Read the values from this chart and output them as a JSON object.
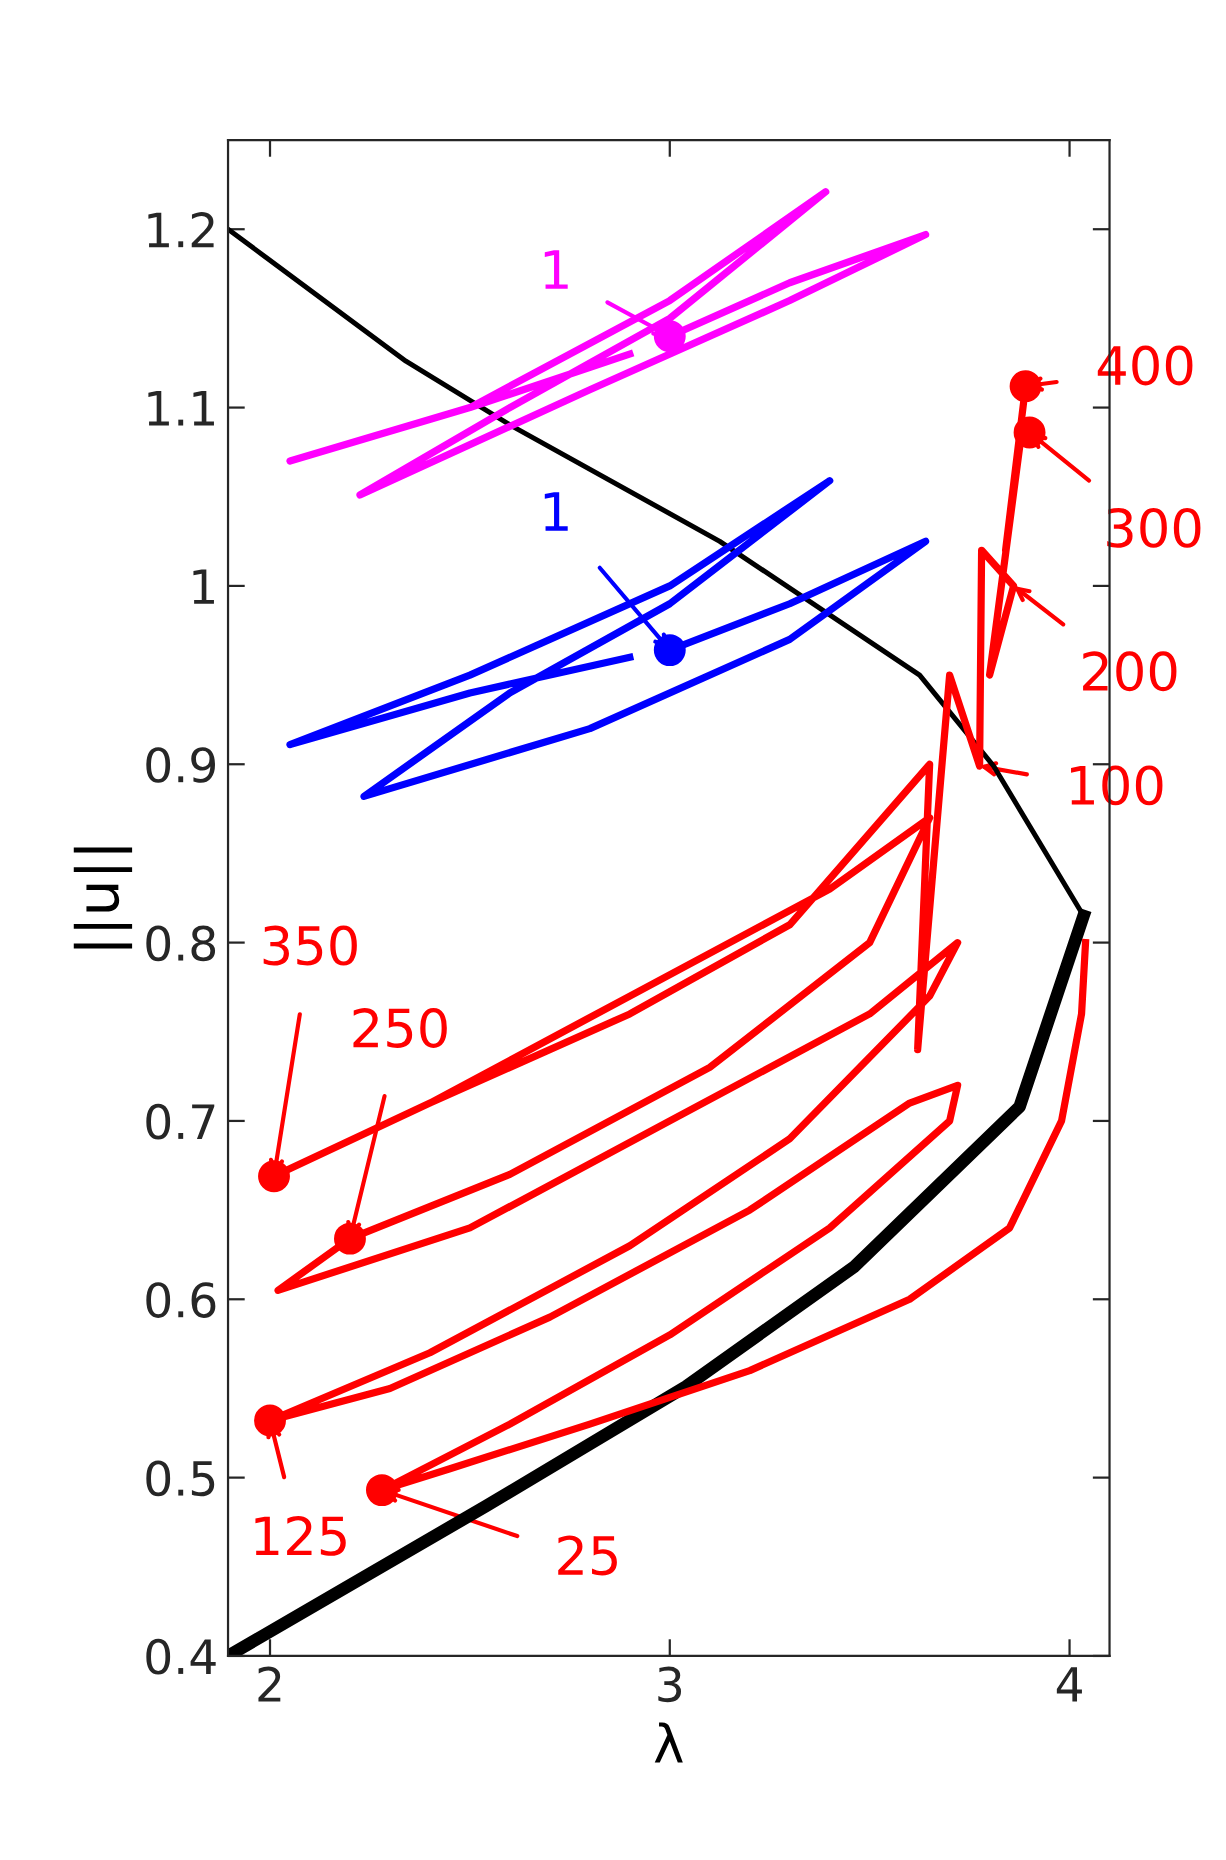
{
  "chart_data": {
    "type": "line",
    "xlabel": "λ",
    "ylabel": "||u||",
    "xlim": [
      1.895,
      4.1
    ],
    "ylim": [
      0.4,
      1.25
    ],
    "xticks": [
      2,
      3,
      4
    ],
    "yticks": [
      0.4,
      0.5,
      0.6,
      0.7,
      0.8,
      0.9,
      1,
      1.1,
      1.2
    ],
    "grid": false,
    "legend": false,
    "line_style": "solid",
    "series": [
      {
        "color": "#000000",
        "x": [
          1.895,
          2.34,
          2.61,
          3.125,
          3.625,
          3.81,
          4.035
        ],
        "values": [
          1.2,
          1.126,
          1.089,
          1.025,
          0.95,
          0.899,
          0.815
        ]
      },
      {
        "color": "#000000",
        "x": [
          4.035,
          3.875,
          3.46,
          3.04,
          2.54,
          1.895
        ],
        "values": [
          0.815,
          0.708,
          0.618,
          0.551,
          0.484,
          0.4
        ]
      },
      {
        "color": "#ff00ff",
        "x": [
          3.0,
          3.3,
          3.64,
          3.3,
          2.8,
          2.225,
          2.6,
          3.0,
          3.39,
          3.0,
          2.5,
          2.05,
          2.5,
          2.9
        ],
        "values": [
          1.14,
          1.17,
          1.197,
          1.16,
          1.11,
          1.051,
          1.1,
          1.15,
          1.221,
          1.16,
          1.1,
          1.07,
          1.1,
          1.13
        ]
      },
      {
        "color": "#0000ff",
        "x": [
          3.0,
          3.3,
          3.64,
          3.3,
          2.8,
          2.235,
          2.6,
          3.0,
          3.4,
          3.0,
          2.5,
          2.05,
          2.5,
          2.9
        ],
        "values": [
          0.964,
          0.99,
          1.025,
          0.97,
          0.92,
          0.882,
          0.94,
          0.99,
          1.059,
          1.0,
          0.95,
          0.911,
          0.94,
          0.96
        ]
      },
      {
        "color": "#ff0000",
        "x": [
          4.04,
          4.03,
          3.98,
          3.85,
          3.6,
          3.2,
          2.8,
          2.45,
          2.28,
          2.6,
          3.0,
          3.4,
          3.7,
          3.72,
          3.6,
          3.2,
          2.7,
          2.3,
          2.0,
          2.4,
          2.9,
          3.3,
          3.65,
          3.72,
          3.5,
          3.0,
          2.5,
          2.02,
          2.2,
          2.6,
          3.1,
          3.5,
          3.65,
          3.4,
          2.9,
          2.4,
          2.0,
          2.4,
          2.9,
          3.3,
          3.65,
          3.62,
          3.7,
          3.775,
          3.78,
          3.86,
          3.8,
          3.88,
          3.84,
          3.89
        ],
        "values": [
          0.8,
          0.76,
          0.7,
          0.64,
          0.6,
          0.56,
          0.53,
          0.505,
          0.493,
          0.53,
          0.58,
          0.64,
          0.7,
          0.72,
          0.71,
          0.65,
          0.59,
          0.55,
          0.532,
          0.57,
          0.63,
          0.69,
          0.77,
          0.8,
          0.76,
          0.7,
          0.64,
          0.605,
          0.634,
          0.67,
          0.73,
          0.8,
          0.87,
          0.83,
          0.77,
          0.71,
          0.668,
          0.71,
          0.76,
          0.81,
          0.9,
          0.74,
          0.95,
          0.899,
          1.02,
          1.0,
          0.95,
          1.086,
          1.02,
          1.112
        ]
      },
      {
        "type": "scatter",
        "marker": "circle",
        "color": "#ff00ff",
        "x": [
          3.0
        ],
        "values": [
          1.14
        ]
      },
      {
        "type": "scatter",
        "marker": "circle",
        "color": "#0000ff",
        "x": [
          3.0
        ],
        "values": [
          0.964
        ]
      },
      {
        "type": "scatter",
        "marker": "circle",
        "color": "#ff0000",
        "x": [
          2.28,
          2.0,
          2.2,
          2.01,
          3.9,
          3.89
        ],
        "values": [
          0.493,
          0.532,
          0.634,
          0.669,
          1.086,
          1.112
        ]
      }
    ],
    "annotations": [
      {
        "text": "1",
        "x": 3.0,
        "y": 1.14
      },
      {
        "text": "1",
        "x": 3.0,
        "y": 0.964
      },
      {
        "text": "400",
        "x": 3.89,
        "y": 1.112
      },
      {
        "text": "300",
        "x": 3.9,
        "y": 1.086
      },
      {
        "text": "200",
        "x": 3.86,
        "y": 1.0
      },
      {
        "text": "100",
        "x": 3.775,
        "y": 0.899
      },
      {
        "text": "350",
        "x": 2.01,
        "y": 0.669
      },
      {
        "text": "250",
        "x": 2.2,
        "y": 0.634
      },
      {
        "text": "125",
        "x": 2.0,
        "y": 0.532
      },
      {
        "text": "25",
        "x": 2.28,
        "y": 0.493
      }
    ]
  }
}
